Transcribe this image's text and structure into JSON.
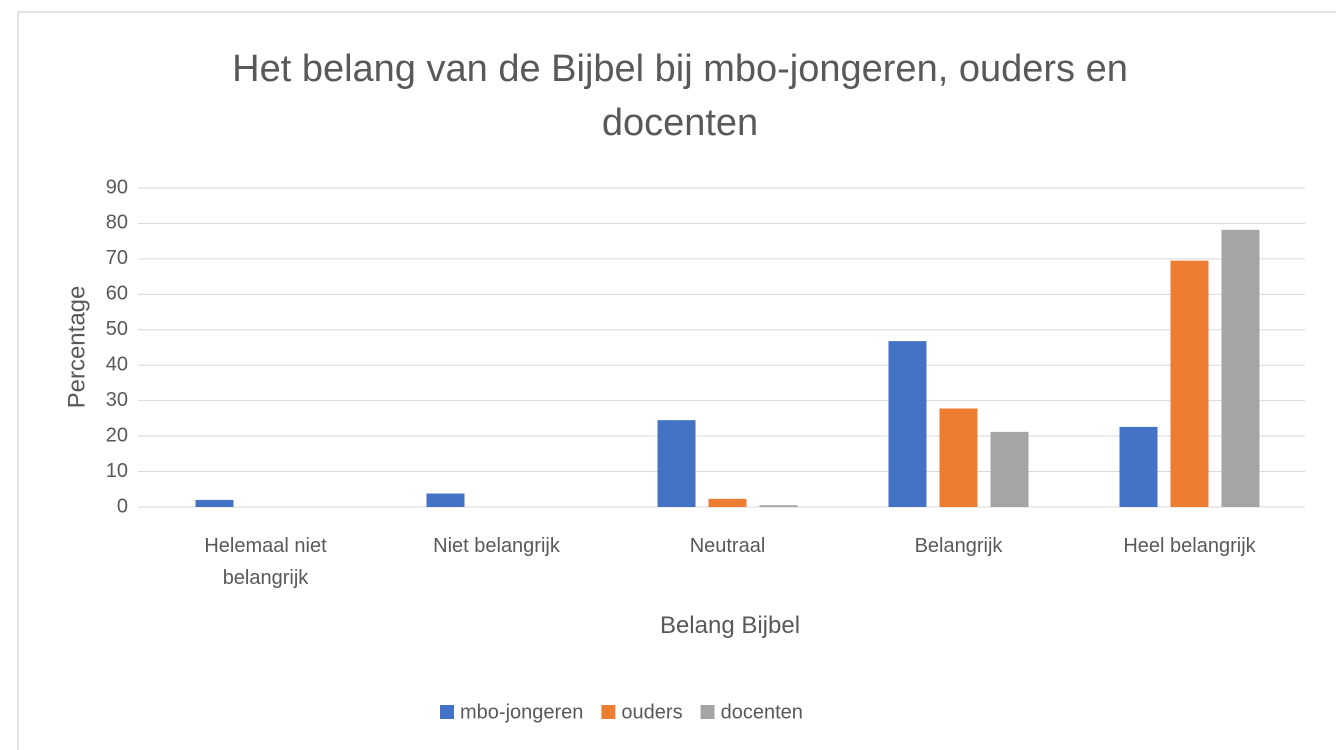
{
  "chart_data": {
    "type": "bar",
    "title": "Het belang van de Bijbel bij mbo-jongeren, ouders en docenten",
    "x_label": "Belang Bijbel",
    "y_label": "Percentage",
    "categories": [
      "Helemaal niet belangrijk",
      "Niet belangrijk",
      "Neutraal",
      "Belangrijk",
      "Heel belangrijk"
    ],
    "series": [
      {
        "name": "mbo-jongeren",
        "color": "#4472c4",
        "values": [
          2,
          3.8,
          24.5,
          46.8,
          22.6
        ]
      },
      {
        "name": "ouders",
        "color": "#ed7d31",
        "values": [
          0,
          0,
          2.3,
          27.8,
          69.5
        ]
      },
      {
        "name": "docenten",
        "color": "#a5a5a5",
        "values": [
          0,
          0,
          0.5,
          21.2,
          78.2
        ]
      }
    ],
    "ylim": [
      0,
      90
    ],
    "yticks": [
      0,
      10,
      20,
      30,
      40,
      50,
      60,
      70,
      80,
      90
    ],
    "grid": true,
    "legend": "bottom"
  }
}
